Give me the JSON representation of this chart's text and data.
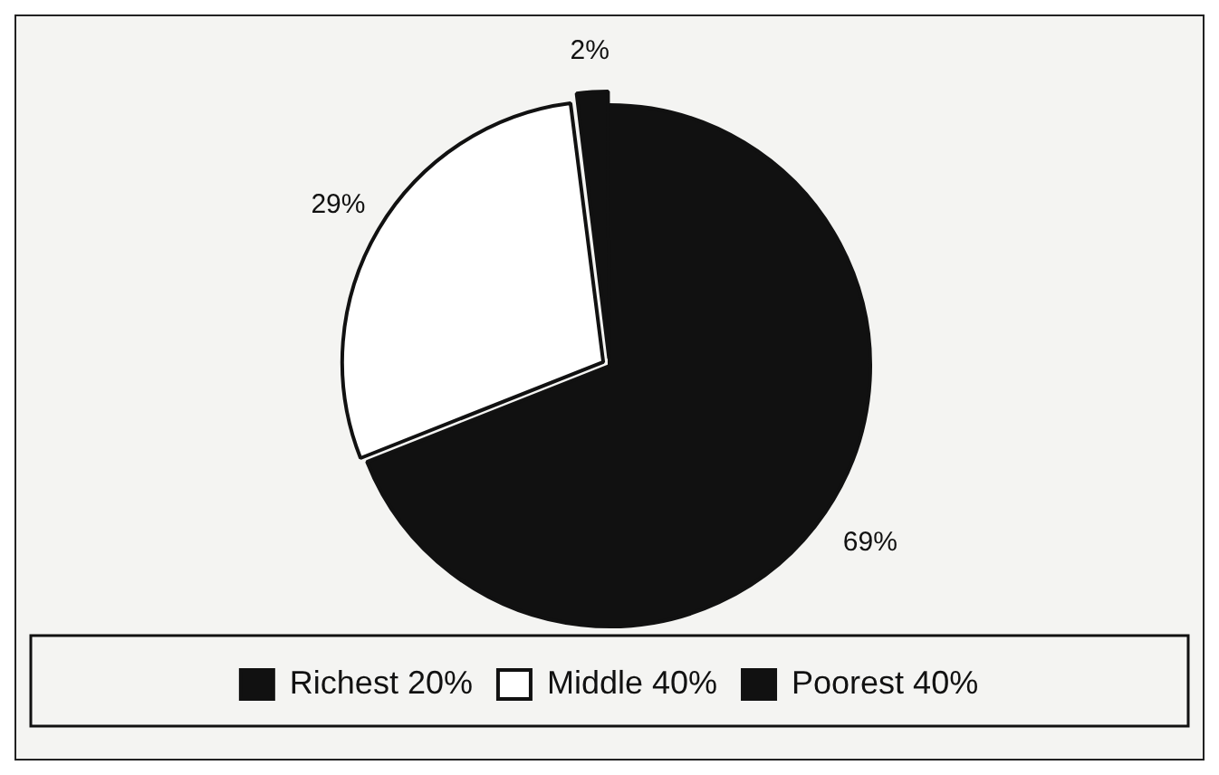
{
  "chart_data": {
    "type": "pie",
    "categories": [
      "Richest 20%",
      "Middle 40%",
      "Poorest 40%"
    ],
    "values": [
      69,
      29,
      2
    ],
    "colors": [
      "#111111",
      "#ffffff",
      "#111111"
    ],
    "value_labels": [
      "69%",
      "29%",
      "2%"
    ],
    "legend": "bottom"
  }
}
